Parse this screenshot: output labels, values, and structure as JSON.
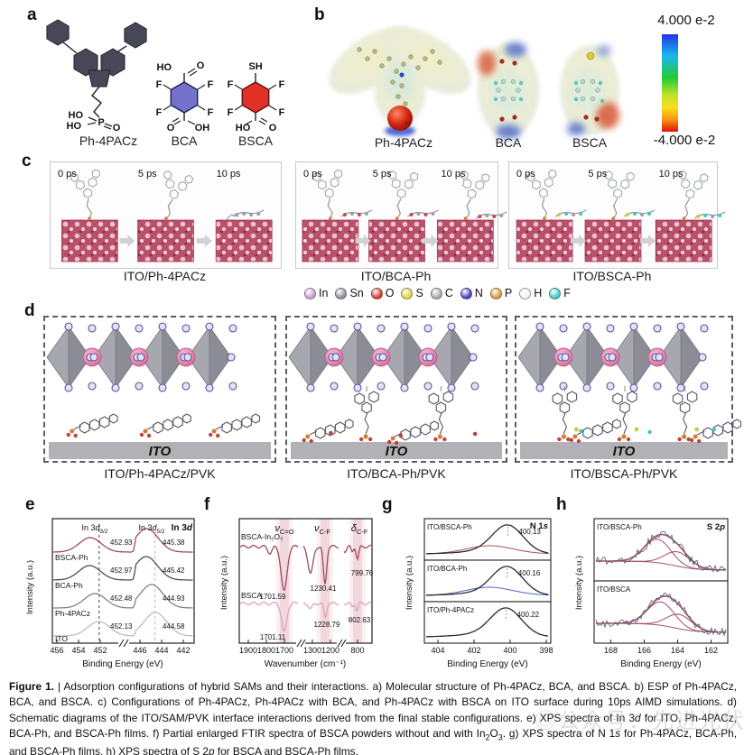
{
  "panel_letters": {
    "a": "a",
    "b": "b",
    "c": "c",
    "d": "d",
    "e": "e",
    "f": "f",
    "g": "g",
    "h": "h"
  },
  "panel_a": {
    "molecules": [
      {
        "name": "Ph-4PACz",
        "labels": {
          "ho1": "HO",
          "ho2": "HO",
          "p": "P",
          "o": "O"
        }
      },
      {
        "name": "BCA",
        "labels": {
          "top_left": "HO",
          "top_right": "O",
          "f": [
            "F",
            "F",
            "F",
            "F"
          ],
          "bottom_left": "O",
          "bottom_right": "OH"
        }
      },
      {
        "name": "BSCA",
        "labels": {
          "top": "SH",
          "f": [
            "F",
            "F",
            "F",
            "F"
          ],
          "bottom_left": "HO",
          "bottom_right": "O"
        }
      }
    ]
  },
  "panel_b": {
    "molecule_labels": [
      "Ph-4PACz",
      "BCA",
      "BSCA"
    ],
    "colorbar": {
      "top": "4.000 e-2",
      "bottom": "-4.000 e-2"
    }
  },
  "panel_c": {
    "time_labels": [
      "0 ps",
      "5 ps",
      "10 ps"
    ],
    "boxes": [
      {
        "title": "ITO/Ph-4PACz"
      },
      {
        "title": "ITO/BCA-Ph"
      },
      {
        "title": "ITO/BSCA-Ph"
      }
    ]
  },
  "atom_legend": [
    {
      "symbol": "In",
      "color": "#c99ed8"
    },
    {
      "symbol": "Sn",
      "color": "#8f8f9f"
    },
    {
      "symbol": "O",
      "color": "#d93a2b"
    },
    {
      "symbol": "S",
      "color": "#e6d13c"
    },
    {
      "symbol": "C",
      "color": "#a8a8b0"
    },
    {
      "symbol": "N",
      "color": "#4a3fbf"
    },
    {
      "symbol": "P",
      "color": "#e0993f"
    },
    {
      "symbol": "H",
      "color": "#f4f4f4"
    },
    {
      "symbol": "F",
      "color": "#3fc8c4"
    }
  ],
  "panel_d": {
    "substrate_label": "ITO",
    "boxes": [
      {
        "title": "ITO/Ph-4PACz/PVK"
      },
      {
        "title": "ITO/BCA-Ph/PVK"
      },
      {
        "title": "ITO/BSCA-Ph/PVK"
      }
    ]
  },
  "chart_data": [
    {
      "id": "e",
      "type": "line",
      "title": "XPS In 3d spectra",
      "region_label": {
        "pre": "In 3",
        "it": "d"
      },
      "peak_labels": [
        {
          "pre": "In 3",
          "it": "d",
          "sub": "3/2"
        },
        {
          "pre": "In 3",
          "it": "d",
          "sub": "5/2"
        }
      ],
      "xlabel": "Binding Energy (eV)",
      "ylabel": "Intensity (a.u.)",
      "x_ticks_left": [
        456,
        454,
        452
      ],
      "x_ticks_right": [
        446,
        444,
        442
      ],
      "x_axis_break": true,
      "series": [
        {
          "name": "BSCA-Ph",
          "color": "#a04a60",
          "peaks": [
            452.93,
            445.38
          ]
        },
        {
          "name": "BCA-Ph",
          "color": "#46505c",
          "peaks": [
            452.97,
            445.42
          ]
        },
        {
          "name": "Ph-4PACz",
          "color": "#7b8490",
          "peaks": [
            452.48,
            444.93
          ]
        },
        {
          "name": "ITO",
          "color": "#b9bec4",
          "peaks": [
            452.13,
            444.58
          ]
        }
      ],
      "guides": [
        {
          "x": 452.1,
          "color": "#444444"
        },
        {
          "x": 444.62,
          "color": "#dca6b2"
        }
      ]
    },
    {
      "id": "f",
      "type": "line",
      "title": "Partial enlarged FTIR spectra",
      "mode_labels": [
        {
          "sym": "ν",
          "sub": "C=O"
        },
        {
          "sym": "ν",
          "sub": "C-F"
        },
        {
          "sym": "δ",
          "sub": "C-F"
        }
      ],
      "xlabel": "Wavenumber (cm⁻¹)",
      "ylabel": "Intensity (a.u.)",
      "x_ticks_segments": [
        [
          1900,
          1800,
          1700
        ],
        [
          1300,
          1200
        ],
        [
          800
        ]
      ],
      "highlight_bands": [
        1701,
        1230,
        800
      ],
      "series": [
        {
          "name": "BSCA-In₂O₃",
          "color": "#a04a60",
          "dips": [
            1701.59,
            1230.41,
            799.76
          ]
        },
        {
          "name": "BSCA",
          "color": "#d9a6b2",
          "dips": [
            1701.11,
            1228.79,
            802.63
          ]
        }
      ]
    },
    {
      "id": "g",
      "type": "line",
      "title": "XPS N 1s spectra",
      "region_label": {
        "pre": "N 1",
        "it": "s"
      },
      "xlabel": "Binding Energy (eV)",
      "ylabel": "Intensity (a.u.)",
      "x_ticks": [
        404,
        402,
        400,
        398
      ],
      "series": [
        {
          "name": "ITO/BSCA-Ph",
          "peak": 400.13,
          "fit_color": "#b05050"
        },
        {
          "name": "ITO/BCA-Ph",
          "peak": 400.16,
          "fit_color": "#5068b8"
        },
        {
          "name": "ITO/Ph-4PACz",
          "peak": 400.22,
          "fit_color": ""
        }
      ]
    },
    {
      "id": "h",
      "type": "line",
      "title": "XPS S 2p spectra",
      "region_label": {
        "pre": "S 2",
        "it": "p"
      },
      "xlabel": "Binding Energy (eV)",
      "ylabel": "Intensity (a.u.)",
      "x_ticks": [
        168,
        166,
        164,
        162
      ],
      "trace_color": "#5c6278",
      "fit_color": "#a34a66",
      "series": [
        {
          "name": "ITO/BSCA-Ph",
          "components": [
            165.2,
            164.0
          ]
        },
        {
          "name": "ITO/BSCA",
          "components": [
            165.0,
            163.9
          ]
        }
      ]
    }
  ],
  "caption_runs": [
    {
      "t": "Figure 1.",
      "b": true
    },
    {
      "t": " | Adsorption configurations of hybrid SAMs and their interactions. a) Molecular structure of Ph-4PACz, BCA, and BSCA. b) ESP of Ph-4PACz, BCA, and BSCA. c) Configurations of Ph-4PACz, Ph-4PACz with BCA, and Ph-4PACz with BSCA on ITO surface during 10ps AIMD simulations. d) Schematic diagrams of the ITO/SAM/PVK interface interactions derived from the final stable configurations. e) XPS spectra of In 3"
    },
    {
      "t": "d",
      "i": true
    },
    {
      "t": " for ITO, Ph-4PACz, BCA-Ph, and BSCA-Ph films. f) Partial enlarged FTIR spectra of BSCA powders without and with In"
    },
    {
      "t": "2",
      "sub": true
    },
    {
      "t": "O"
    },
    {
      "t": "3",
      "sub": true
    },
    {
      "t": ". g) XPS spectra of N 1"
    },
    {
      "t": "s",
      "i": true
    },
    {
      "t": " for Ph-4PACz, BCA-Ph, and BSCA-Ph films. h) XPS spectra of S 2"
    },
    {
      "t": "p",
      "i": true
    },
    {
      "t": " for BSCA and BSCA-Ph films."
    }
  ],
  "watermark": "◎公众号：先进光伏"
}
